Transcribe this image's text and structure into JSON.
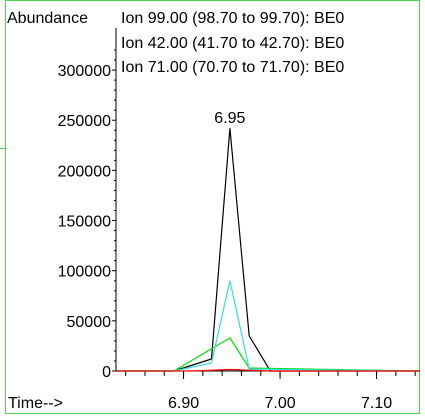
{
  "chart_data": {
    "type": "line",
    "ylabel": "Abundance",
    "xlabel": "Time-->",
    "annotation": "6.95",
    "xlim": [
      6.83,
      7.145
    ],
    "ylim": [
      0,
      330000
    ],
    "xticks": [
      {
        "value": 6.9,
        "label": "6.90"
      },
      {
        "value": 7.0,
        "label": "7.00"
      },
      {
        "value": 7.1,
        "label": "7.10"
      }
    ],
    "yticks": [
      {
        "value": 0,
        "label": "0"
      },
      {
        "value": 50000,
        "label": "50000"
      },
      {
        "value": 100000,
        "label": "100000"
      },
      {
        "value": 150000,
        "label": "150000"
      },
      {
        "value": 200000,
        "label": "200000"
      },
      {
        "value": 250000,
        "label": "250000"
      },
      {
        "value": 300000,
        "label": "300000"
      }
    ],
    "series": [
      {
        "name": "Ion  99.00 (98.70 to 99.70): BE0",
        "color": "#000000",
        "x": [
          6.83,
          6.89,
          6.929,
          6.948,
          6.968,
          6.99,
          7.145
        ],
        "y": [
          0,
          0,
          12000,
          242000,
          35000,
          0,
          0
        ]
      },
      {
        "name": "Ion  42.00 (41.70 to 42.70): BE0",
        "color": "#00e000",
        "x": [
          6.83,
          6.89,
          6.948,
          6.968,
          7.145
        ],
        "y": [
          0,
          0,
          33000,
          3000,
          0
        ]
      },
      {
        "name": "Ion  71.00 (70.70 to 71.70): BE0",
        "color": "#33e0e0",
        "x": [
          6.83,
          6.89,
          6.929,
          6.948,
          6.968,
          7.145
        ],
        "y": [
          0,
          0,
          8000,
          90000,
          2000,
          0
        ]
      },
      {
        "color": "#ff0000",
        "x": [
          6.83,
          6.91,
          6.948,
          6.99,
          7.145
        ],
        "y": [
          0,
          0,
          1500,
          0,
          0
        ]
      }
    ]
  }
}
